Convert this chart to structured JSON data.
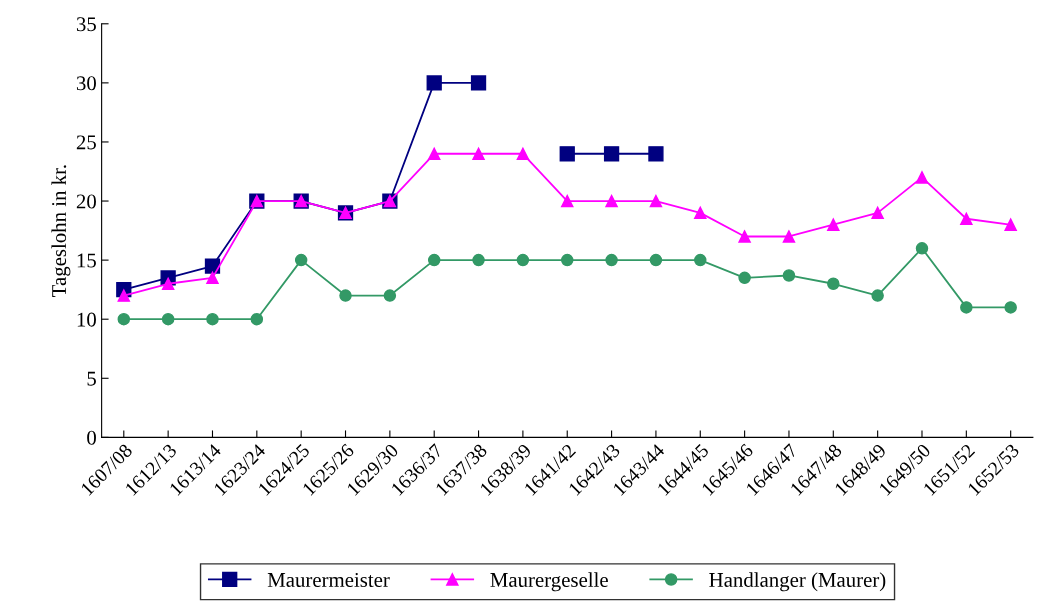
{
  "chart_data": {
    "type": "line",
    "ylabel": "Tageslohn in kr.",
    "categories": [
      "1607/08",
      "1612/13",
      "1613/14",
      "1623/24",
      "1624/25",
      "1625/26",
      "1629/30",
      "1636/37",
      "1637/38",
      "1638/39",
      "1641/42",
      "1642/43",
      "1643/44",
      "1644/45",
      "1645/46",
      "1646/47",
      "1647/48",
      "1648/49",
      "1649/50",
      "1651/52",
      "1652/53"
    ],
    "series": [
      {
        "name": "Maurermeister",
        "color": "#000080",
        "marker": "square",
        "values": [
          12.5,
          13.5,
          14.5,
          20,
          20,
          19,
          20,
          30,
          30,
          null,
          24,
          24,
          24,
          null,
          null,
          null,
          null,
          null,
          null,
          null,
          null
        ]
      },
      {
        "name": "Maurergeselle",
        "color": "#ff00ff",
        "marker": "triangle",
        "values": [
          12,
          13,
          13.5,
          20,
          20,
          19,
          20,
          24,
          24,
          24,
          20,
          20,
          20,
          19,
          17,
          17,
          18,
          19,
          22,
          18.5,
          18
        ]
      },
      {
        "name": "Handlanger (Maurer)",
        "color": "#339966",
        "marker": "circle",
        "values": [
          10,
          10,
          10,
          10,
          15,
          12,
          12,
          15,
          15,
          15,
          15,
          15,
          15,
          15,
          13.5,
          13.7,
          13,
          12,
          16,
          11,
          11
        ]
      }
    ],
    "ylim": [
      0,
      35
    ],
    "yticks": [
      0,
      5,
      10,
      15,
      20,
      25,
      30,
      35
    ],
    "grid": false,
    "legend": "bottom"
  }
}
